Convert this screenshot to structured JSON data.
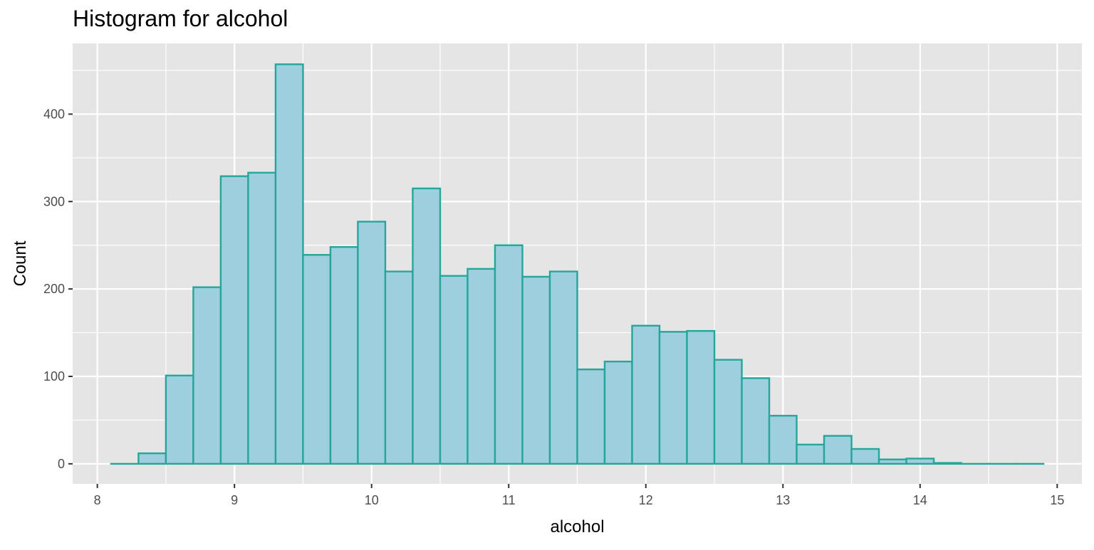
{
  "chart_data": {
    "type": "bar",
    "title": "Histogram for alcohol",
    "xlabel": "alcohol",
    "ylabel": "Count",
    "xlim": [
      7.82,
      15.18
    ],
    "ylim": [
      -22.9,
      480.9
    ],
    "x_ticks": [
      8,
      9,
      10,
      11,
      12,
      13,
      14,
      15
    ],
    "y_ticks": [
      0,
      100,
      200,
      300,
      400
    ],
    "grid": true,
    "bin_width": 0.2,
    "bins": [
      {
        "x": 8.2,
        "count": 0
      },
      {
        "x": 8.4,
        "count": 12
      },
      {
        "x": 8.6,
        "count": 101
      },
      {
        "x": 8.8,
        "count": 202
      },
      {
        "x": 9.0,
        "count": 329
      },
      {
        "x": 9.2,
        "count": 333
      },
      {
        "x": 9.4,
        "count": 457
      },
      {
        "x": 9.6,
        "count": 239
      },
      {
        "x": 9.8,
        "count": 248
      },
      {
        "x": 10.0,
        "count": 277
      },
      {
        "x": 10.2,
        "count": 220
      },
      {
        "x": 10.4,
        "count": 315
      },
      {
        "x": 10.6,
        "count": 215
      },
      {
        "x": 10.8,
        "count": 223
      },
      {
        "x": 11.0,
        "count": 250
      },
      {
        "x": 11.2,
        "count": 214
      },
      {
        "x": 11.4,
        "count": 220
      },
      {
        "x": 11.6,
        "count": 108
      },
      {
        "x": 11.8,
        "count": 117
      },
      {
        "x": 12.0,
        "count": 158
      },
      {
        "x": 12.2,
        "count": 151
      },
      {
        "x": 12.4,
        "count": 152
      },
      {
        "x": 12.6,
        "count": 119
      },
      {
        "x": 12.8,
        "count": 98
      },
      {
        "x": 13.0,
        "count": 55
      },
      {
        "x": 13.2,
        "count": 22
      },
      {
        "x": 13.4,
        "count": 32
      },
      {
        "x": 13.6,
        "count": 17
      },
      {
        "x": 13.8,
        "count": 5
      },
      {
        "x": 14.0,
        "count": 6
      },
      {
        "x": 14.2,
        "count": 1
      },
      {
        "x": 14.4,
        "count": 0
      },
      {
        "x": 14.6,
        "count": 0
      },
      {
        "x": 14.8,
        "count": 0
      }
    ],
    "colors": {
      "fill": "#9ECFDF",
      "outline": "#26A69A",
      "panel": "#E5E5E5",
      "grid": "#FFFFFF"
    }
  }
}
